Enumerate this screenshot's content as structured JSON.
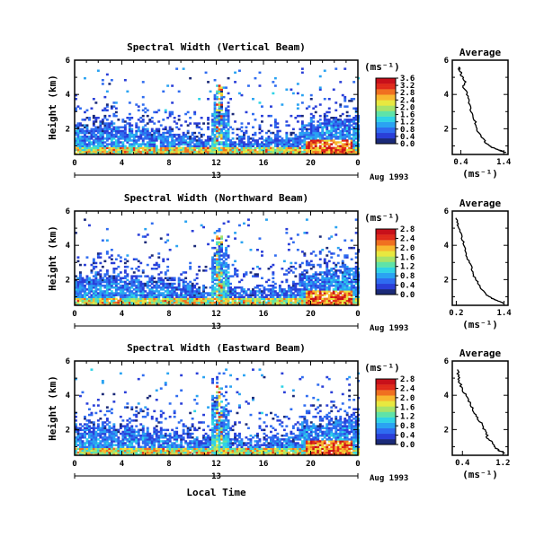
{
  "chart_data": [
    {
      "type": "heatmap",
      "title": "Spectral Width (Vertical Beam)",
      "ylabel": "Height (km)",
      "xlabel": "",
      "x_ticks": [
        "0",
        "4",
        "8",
        "12",
        "16",
        "20",
        "0"
      ],
      "y_ticks": [
        "2",
        "4",
        "6"
      ],
      "date_day": "13",
      "date_month": "Aug 1993",
      "colorbar_unit": "(ms⁻¹)",
      "colorbar_ticks": [
        "0.0",
        "0.4",
        "0.8",
        "1.2",
        "1.6",
        "2.0",
        "2.4",
        "2.8",
        "3.2",
        "3.6"
      ],
      "xlim": [
        0,
        24
      ],
      "ylim": [
        0.5,
        6
      ],
      "clim": [
        0,
        3.6
      ]
    },
    {
      "type": "line",
      "title": "Average",
      "y_ticks": [
        "2",
        "4",
        "6"
      ],
      "x_ticks": [
        "0.4",
        "1.4"
      ],
      "xlabel": "(ms⁻¹)",
      "xlim": [
        0.2,
        1.5
      ],
      "ylim": [
        0.5,
        6
      ],
      "profile": [
        [
          1.45,
          0.6
        ],
        [
          1.35,
          0.7
        ],
        [
          1.2,
          0.85
        ],
        [
          1.05,
          1.0
        ],
        [
          0.95,
          1.3
        ],
        [
          0.85,
          1.6
        ],
        [
          0.78,
          2.0
        ],
        [
          0.72,
          2.5
        ],
        [
          0.65,
          3.0
        ],
        [
          0.6,
          3.5
        ],
        [
          0.55,
          4.0
        ],
        [
          0.45,
          4.5
        ],
        [
          0.5,
          4.8
        ],
        [
          0.42,
          5.1
        ],
        [
          0.38,
          5.4
        ],
        [
          0.35,
          5.6
        ]
      ]
    },
    {
      "type": "heatmap",
      "title": "Spectral Width (Northward Beam)",
      "ylabel": "Height (km)",
      "xlabel": "",
      "x_ticks": [
        "0",
        "4",
        "8",
        "12",
        "16",
        "20",
        "0"
      ],
      "y_ticks": [
        "2",
        "4",
        "6"
      ],
      "date_day": "13",
      "date_month": "Aug 1993",
      "colorbar_unit": "(ms⁻¹)",
      "colorbar_ticks": [
        "0.0",
        "0.4",
        "0.8",
        "1.2",
        "1.6",
        "2.0",
        "2.4",
        "2.8"
      ],
      "xlim": [
        0,
        24
      ],
      "ylim": [
        0.5,
        6
      ],
      "clim": [
        0,
        2.8
      ]
    },
    {
      "type": "line",
      "title": "Average",
      "y_ticks": [
        "2",
        "4",
        "6"
      ],
      "x_ticks": [
        "0.2",
        "1.4"
      ],
      "xlabel": "(ms⁻¹)",
      "xlim": [
        0.1,
        1.5
      ],
      "ylim": [
        0.5,
        6
      ],
      "profile": [
        [
          1.4,
          0.6
        ],
        [
          1.25,
          0.75
        ],
        [
          1.1,
          0.9
        ],
        [
          0.95,
          1.1
        ],
        [
          0.85,
          1.4
        ],
        [
          0.75,
          1.8
        ],
        [
          0.65,
          2.2
        ],
        [
          0.6,
          2.6
        ],
        [
          0.52,
          3.0
        ],
        [
          0.45,
          3.5
        ],
        [
          0.4,
          4.0
        ],
        [
          0.33,
          4.5
        ],
        [
          0.28,
          5.0
        ],
        [
          0.22,
          5.3
        ],
        [
          0.2,
          5.6
        ]
      ]
    },
    {
      "type": "heatmap",
      "title": "Spectral Width (Eastward Beam)",
      "ylabel": "Height (km)",
      "xlabel": "Local Time",
      "x_ticks": [
        "0",
        "4",
        "8",
        "12",
        "16",
        "20",
        "0"
      ],
      "y_ticks": [
        "2",
        "4",
        "6"
      ],
      "date_day": "13",
      "date_month": "Aug 1993",
      "colorbar_unit": "(ms⁻¹)",
      "colorbar_ticks": [
        "0.0",
        "0.4",
        "0.8",
        "1.2",
        "1.6",
        "2.0",
        "2.4",
        "2.8"
      ],
      "xlim": [
        0,
        24
      ],
      "ylim": [
        0.5,
        6
      ],
      "clim": [
        0,
        2.8
      ]
    },
    {
      "type": "line",
      "title": "Average",
      "y_ticks": [
        "2",
        "4",
        "6"
      ],
      "x_ticks": [
        "0.4",
        "1.2"
      ],
      "xlabel": "(ms⁻¹)",
      "xlim": [
        0.2,
        1.3
      ],
      "ylim": [
        0.5,
        6
      ],
      "profile": [
        [
          1.25,
          0.6
        ],
        [
          1.15,
          0.75
        ],
        [
          1.05,
          0.9
        ],
        [
          1.0,
          1.2
        ],
        [
          0.9,
          1.5
        ],
        [
          0.85,
          1.9
        ],
        [
          0.78,
          2.3
        ],
        [
          0.7,
          2.7
        ],
        [
          0.62,
          3.1
        ],
        [
          0.55,
          3.5
        ],
        [
          0.48,
          3.9
        ],
        [
          0.4,
          4.3
        ],
        [
          0.35,
          4.7
        ],
        [
          0.32,
          5.1
        ],
        [
          0.3,
          5.5
        ]
      ]
    }
  ]
}
